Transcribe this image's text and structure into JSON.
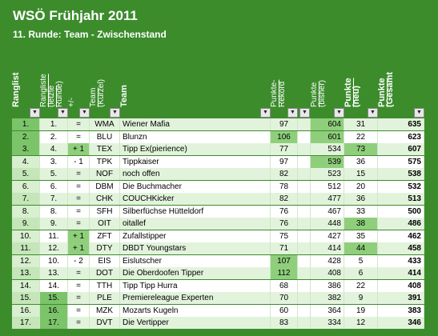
{
  "header": {
    "title": "WSÖ Frühjahr 2011",
    "subtitle": "11. Runde:  Team - Zwischenstand"
  },
  "table": {
    "columns": [
      "Rangliste",
      "Rangliste (letzte Runde)",
      "+/-",
      "Team (Kürzel)",
      "Team",
      "Punkte-Rekord",
      "Punkte (bisher)",
      "Punkte (neu)",
      "Punkte (Gesamt)"
    ],
    "rows": [
      [
        "1.",
        "1.",
        "=",
        "WMA",
        "Wiener Mafia",
        "97",
        "604",
        "31",
        "635"
      ],
      [
        "2.",
        "2.",
        "=",
        "BLU",
        "Blunzn",
        "106",
        "601",
        "22",
        "623"
      ],
      [
        "3.",
        "4.",
        "+ 1",
        "TEX",
        "Tipp Ex(pierience)",
        "77",
        "534",
        "73",
        "607"
      ],
      [
        "4.",
        "3.",
        "- 1",
        "TPK",
        "Tippkaiser",
        "97",
        "539",
        "36",
        "575"
      ],
      [
        "5.",
        "5.",
        "=",
        "NOF",
        "noch offen",
        "82",
        "523",
        "15",
        "538"
      ],
      [
        "6.",
        "6.",
        "=",
        "DBM",
        "Die Buchmacher",
        "78",
        "512",
        "20",
        "532"
      ],
      [
        "7.",
        "7.",
        "=",
        "CHK",
        "COUCHKicker",
        "82",
        "477",
        "36",
        "513"
      ],
      [
        "8.",
        "8.",
        "=",
        "SFH",
        "Silberfüchse Hütteldorf",
        "76",
        "467",
        "33",
        "500"
      ],
      [
        "9.",
        "9.",
        "=",
        "OIT",
        "oitallef",
        "76",
        "448",
        "38",
        "486"
      ],
      [
        "10.",
        "11.",
        "+ 1",
        "ZFT",
        "Zufallstipper",
        "75",
        "427",
        "35",
        "462"
      ],
      [
        "11.",
        "12.",
        "+ 1",
        "DTY",
        "DBDT Youngstars",
        "71",
        "414",
        "44",
        "458"
      ],
      [
        "12.",
        "10.",
        "- 2",
        "EIS",
        "Eislutscher",
        "107",
        "428",
        "5",
        "433"
      ],
      [
        "13.",
        "13.",
        "=",
        "DOT",
        "Die Oberdoofen Tipper",
        "112",
        "408",
        "6",
        "414"
      ],
      [
        "14.",
        "14.",
        "=",
        "TTH",
        "Tipp Tipp Hurra",
        "68",
        "386",
        "22",
        "408"
      ],
      [
        "15.",
        "15.",
        "=",
        "PLE",
        "Premiereleague Experten",
        "70",
        "382",
        "9",
        "391"
      ],
      [
        "16.",
        "16.",
        "=",
        "MZK",
        "Mozarts Kugeln",
        "60",
        "364",
        "19",
        "383"
      ],
      [
        "17.",
        "17.",
        "=",
        "DVT",
        "Die Vertipper",
        "83",
        "334",
        "12",
        "346"
      ]
    ]
  }
}
